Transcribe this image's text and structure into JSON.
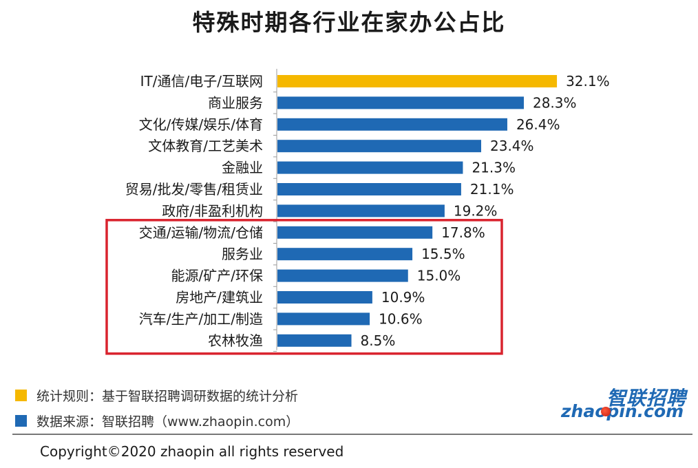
{
  "chart_data": {
    "type": "bar",
    "orientation": "horizontal",
    "title": "特殊时期各行业在家办公占比",
    "categories": [
      "IT/通信/电子/互联网",
      "商业服务",
      "文化/传媒/娱乐/体育",
      "文体教育/工艺美术",
      "金融业",
      "贸易/批发/零售/租赁业",
      "政府/非盈利机构",
      "交通/运输/物流/仓储",
      "服务业",
      "能源/矿产/环保",
      "房地产/建筑业",
      "汽车/生产/加工/制造",
      "农林牧渔"
    ],
    "values": [
      32.1,
      28.3,
      26.4,
      23.4,
      21.3,
      21.1,
      19.2,
      17.8,
      15.5,
      15.0,
      10.9,
      10.6,
      8.5
    ],
    "value_labels": [
      "32.1%",
      "28.3%",
      "26.4%",
      "23.4%",
      "21.3%",
      "21.1%",
      "19.2%",
      "17.8%",
      "15.5%",
      "15.0%",
      "10.9%",
      "10.6%",
      "8.5%"
    ],
    "xlim": [
      0,
      40
    ],
    "grid": false,
    "highlight_bar_index": 0,
    "highlight_box_categories": [
      "交通/运输/物流/仓储",
      "农林牧渔"
    ],
    "colors": {
      "bar": "#1f69b4",
      "highlight_bar": "#f5b800",
      "box": "#d9232e"
    }
  },
  "legend": {
    "rule_text": "统计规则：基于智联招聘调研数据的统计分析",
    "rule_color": "#f5b800",
    "source_text": "数据来源：智联招聘（www.zhaopin.com）",
    "source_color": "#1f69b4"
  },
  "logo": {
    "cn": "智联招聘",
    "en": "zhaopin.com"
  },
  "footer": {
    "copyright": "Copyright©2020 zhaopin all rights reserved"
  }
}
